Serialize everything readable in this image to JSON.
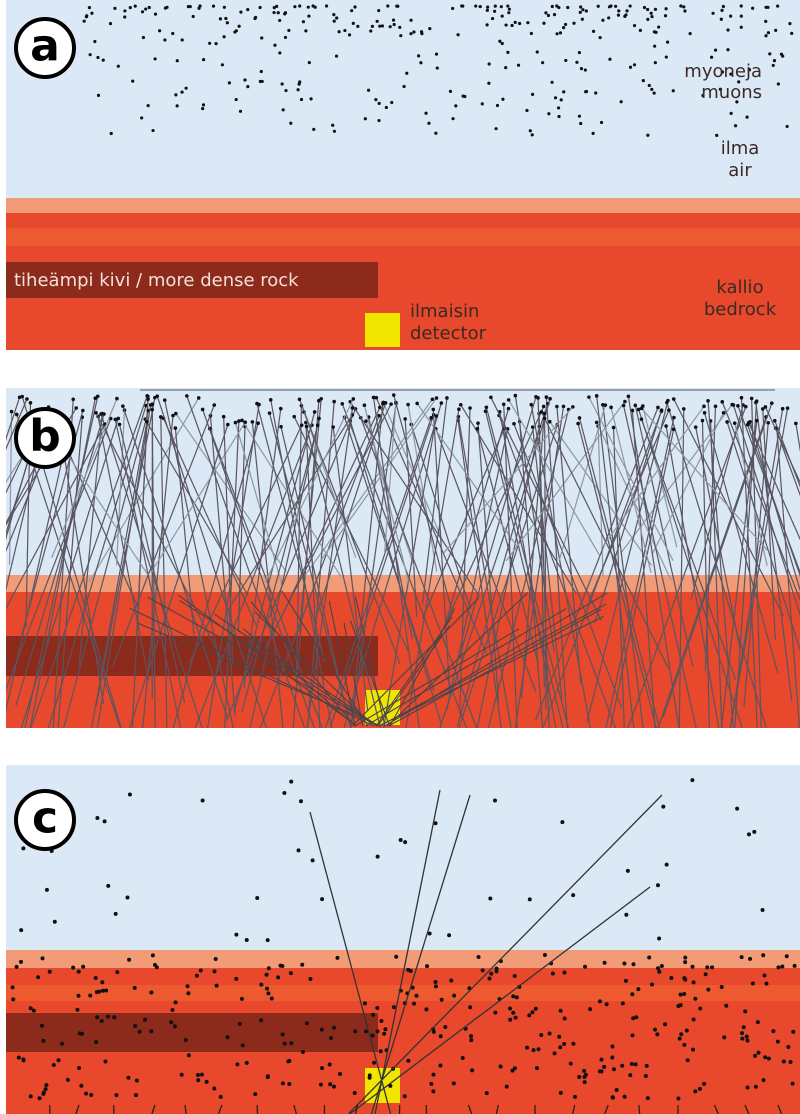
{
  "panels": [
    {
      "label": "a",
      "muons": [
        "myoneja",
        "muons"
      ],
      "air": [
        "ilma",
        "air"
      ],
      "dense_rock": "tiheämpi kivi / more dense rock",
      "bedrock": [
        "kallio",
        "bedrock"
      ],
      "detector": [
        "ilmaisin",
        "detector"
      ]
    },
    {
      "label": "b"
    },
    {
      "label": "c"
    }
  ]
}
